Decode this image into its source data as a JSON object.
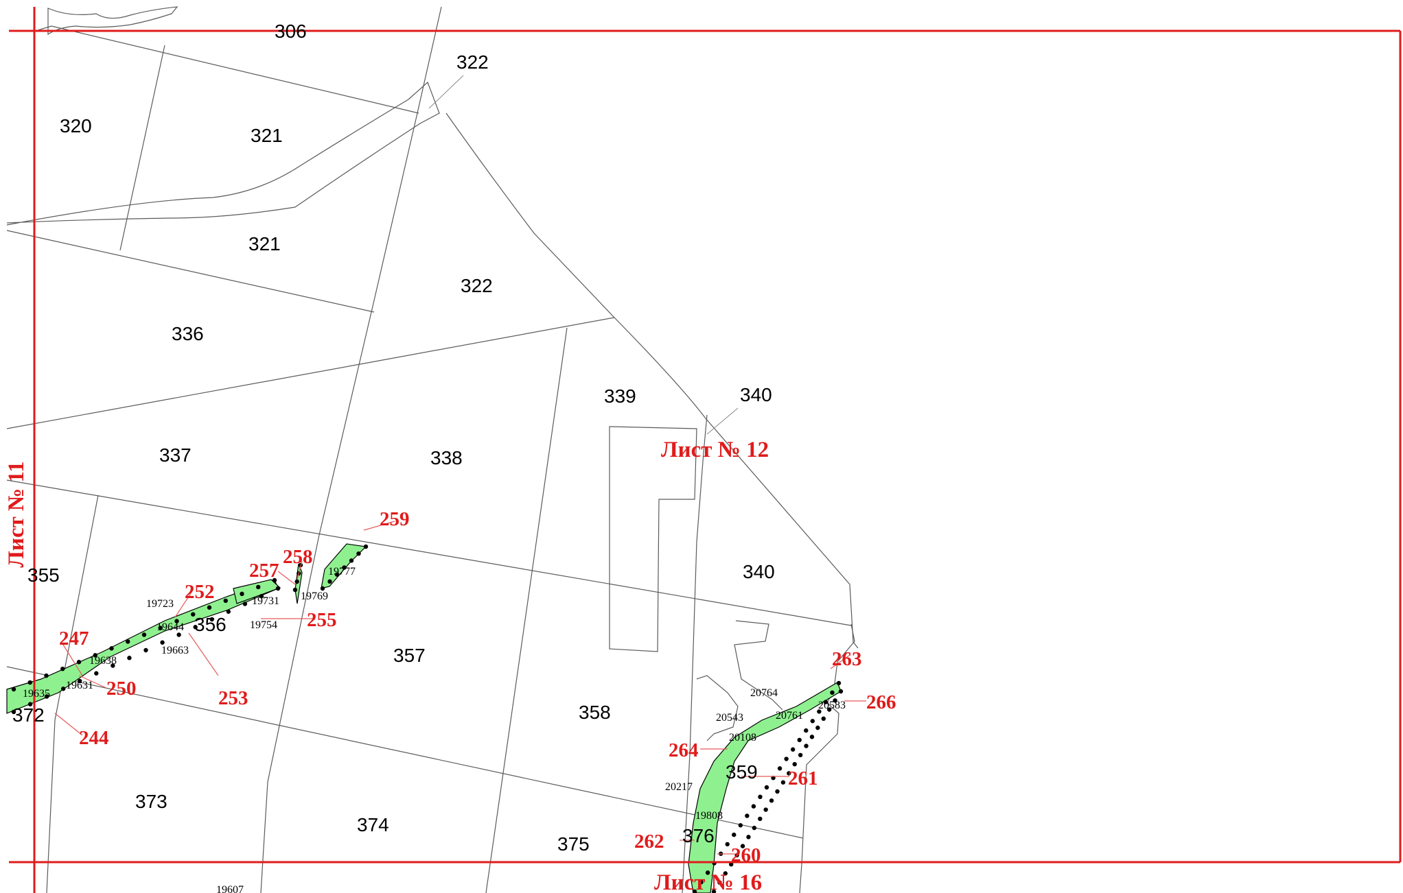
{
  "parcels": [
    "306",
    "322",
    "320",
    "321",
    "321",
    "322",
    "336",
    "339",
    "340",
    "337",
    "338",
    "340",
    "355",
    "356",
    "357",
    "358",
    "359",
    "372",
    "373",
    "374",
    "375",
    "376"
  ],
  "points": [
    "19777",
    "19769",
    "19723",
    "19731",
    "19754",
    "19644",
    "19663",
    "19638",
    "19631",
    "19635",
    "20764",
    "20583",
    "20543",
    "20761",
    "20108",
    "20217",
    "19808",
    "19607"
  ],
  "markers": [
    "259",
    "257",
    "258",
    "252",
    "255",
    "253",
    "247",
    "250",
    "244",
    "263",
    "266",
    "264",
    "261",
    "262",
    "260"
  ],
  "sheets": [
    "Лист № 11",
    "Лист № 12",
    "Лист № 16"
  ],
  "colors": {
    "frame": "#e01b1b",
    "strip": "#8ff08f",
    "parcel_line": "#5a5a5a"
  }
}
